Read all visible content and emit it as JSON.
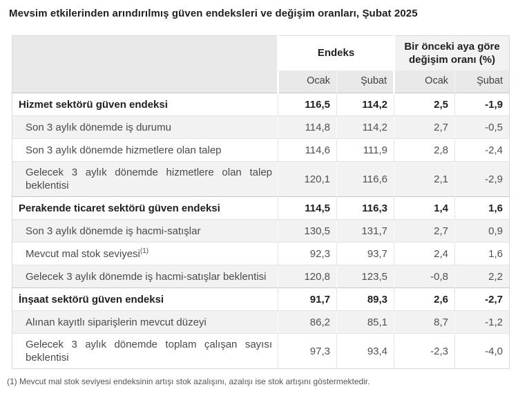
{
  "title": "Mevsim etkilerinden arındırılmış güven endeksleri ve değişim oranları, Şubat 2025",
  "table": {
    "col_groups": {
      "endeks": "Endeks",
      "change": "Bir önceki aya göre değişim oranı (%)"
    },
    "sub_headers": [
      "Ocak",
      "Şubat",
      "Ocak",
      "Şubat"
    ],
    "rows": [
      {
        "label": "Hizmet sektörü güven endeksi",
        "type": "section",
        "values": [
          "116,5",
          "114,2",
          "2,5",
          "-1,9"
        ]
      },
      {
        "label": "Son 3 aylık dönemde iş durumu",
        "type": "item",
        "values": [
          "114,8",
          "114,2",
          "2,7",
          "-0,5"
        ]
      },
      {
        "label": "Son 3 aylık dönemde hizmetlere olan talep",
        "type": "item",
        "values": [
          "114,6",
          "111,9",
          "2,8",
          "-2,4"
        ]
      },
      {
        "label": "Gelecek 3 aylık dönemde hizmetlere olan talep beklentisi",
        "type": "item",
        "values": [
          "120,1",
          "116,6",
          "2,1",
          "-2,9"
        ]
      },
      {
        "label": "Perakende ticaret sektörü güven endeksi",
        "type": "section",
        "values": [
          "114,5",
          "116,3",
          "1,4",
          "1,6"
        ]
      },
      {
        "label": "Son 3 aylık dönemde iş hacmi-satışlar",
        "type": "item",
        "values": [
          "130,5",
          "131,7",
          "2,7",
          "0,9"
        ]
      },
      {
        "label": "Mevcut mal stok seviyesi",
        "sup": "(1)",
        "type": "item",
        "values": [
          "92,3",
          "93,7",
          "2,4",
          "1,6"
        ]
      },
      {
        "label": "Gelecek 3 aylık dönemde iş hacmi-satışlar beklentisi",
        "type": "item",
        "values": [
          "120,8",
          "123,5",
          "-0,8",
          "2,2"
        ]
      },
      {
        "label": "İnşaat sektörü güven endeksi",
        "type": "section",
        "values": [
          "91,7",
          "89,3",
          "2,6",
          "-2,7"
        ]
      },
      {
        "label": "Alınan kayıtlı siparişlerin mevcut düzeyi",
        "type": "item",
        "values": [
          "86,2",
          "85,1",
          "8,7",
          "-1,2"
        ]
      },
      {
        "label": "Gelecek 3 aylık dönemde toplam çalışan sayısı beklentisi",
        "type": "item",
        "values": [
          "97,3",
          "93,4",
          "-2,3",
          "-4,0"
        ]
      }
    ],
    "footnote": "(1) Mevcut mal stok seviyesi endeksinin artışı stok azalışını, azalışı ise stok artışını göstermektedir."
  },
  "colors": {
    "shade_row": "#f2f2f2",
    "subheader_bg": "#e9e9e9",
    "corner_bg": "#e9e9e9",
    "change_header_bg": "#f2f2f2",
    "border": "#e3e3e3",
    "section_border": "#c6c6c6",
    "outer_border": "#d9d9d9",
    "text": "#4a4a4a",
    "strong_text": "#1f1f1f"
  }
}
